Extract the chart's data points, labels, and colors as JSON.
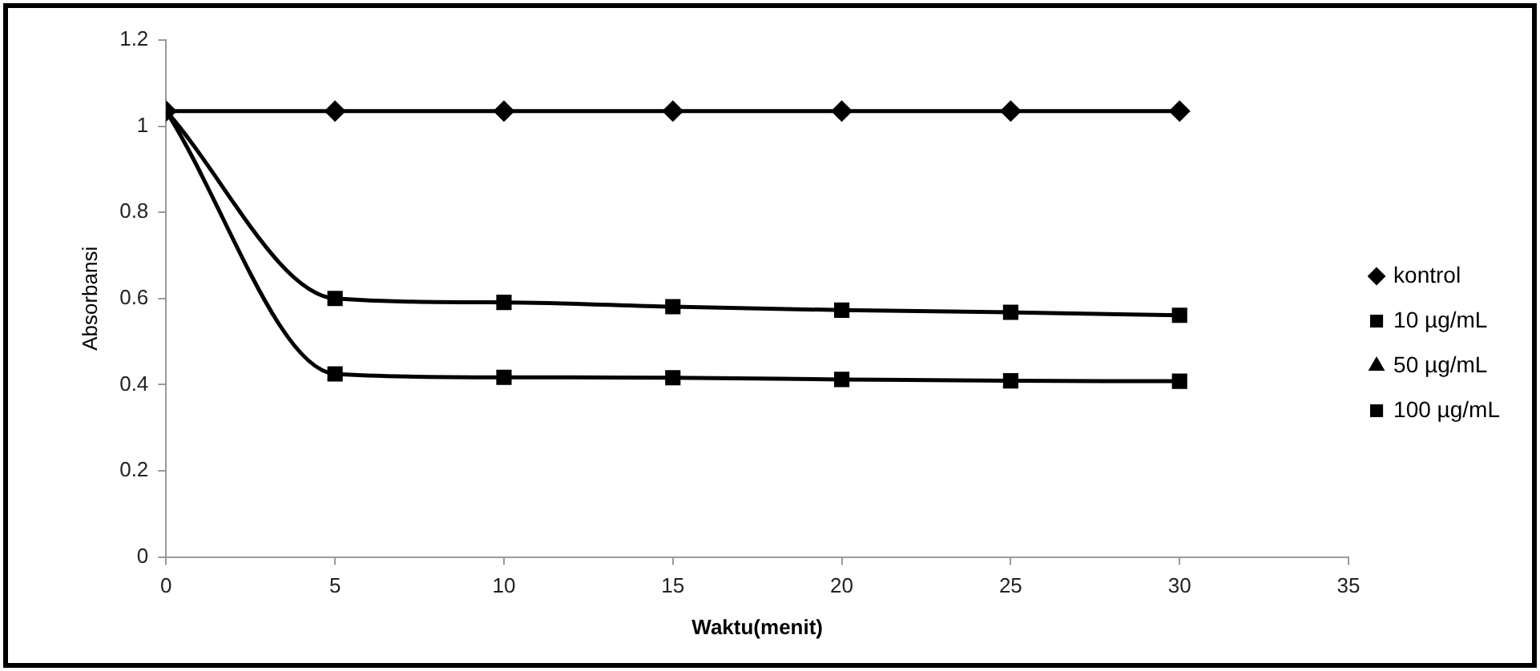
{
  "chart_data": {
    "type": "line",
    "xlabel": "Waktu(menit)",
    "ylabel": "Absorbansi",
    "x": [
      0,
      5,
      10,
      15,
      20,
      25,
      30
    ],
    "xlim": [
      0,
      35
    ],
    "xticks": [
      0,
      5,
      10,
      15,
      20,
      25,
      30,
      35
    ],
    "ylim": [
      0,
      1.2
    ],
    "yticks": [
      0,
      0.2,
      0.4,
      0.6,
      0.8,
      1,
      1.2
    ],
    "grid": false,
    "legend": "right",
    "line_style": "solid",
    "series": [
      {
        "name": "kontrol",
        "color": "#000000",
        "marker": "diamond",
        "values": [
          1.035,
          1.035,
          1.035,
          1.035,
          1.035,
          1.035,
          1.035
        ]
      },
      {
        "name": "10 µg/mL",
        "color": "#000000",
        "marker": "square",
        "values": [
          1.035,
          0.6,
          0.591,
          0.581,
          0.573,
          0.568,
          0.561
        ]
      },
      {
        "name": "50 µg/mL",
        "color": "#000000",
        "marker": "triangle",
        "values": [
          null,
          null,
          null,
          null,
          null,
          null,
          null
        ]
      },
      {
        "name": "100 µg/mL",
        "color": "#000000",
        "marker": "square",
        "values": [
          1.035,
          0.425,
          0.417,
          0.416,
          0.412,
          0.409,
          0.408
        ]
      }
    ]
  }
}
